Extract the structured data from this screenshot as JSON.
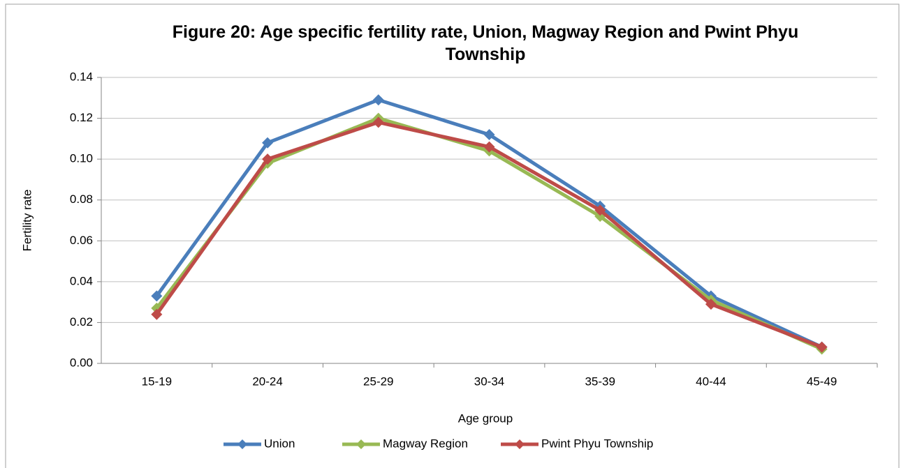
{
  "chart_data": {
    "type": "line",
    "title": "Figure 20: Age specific fertility rate, Union, Magway Region and Pwint Phyu Township",
    "x_label": "Age group",
    "y_label": "Fertility rate",
    "categories": [
      "15-19",
      "20-24",
      "25-29",
      "30-34",
      "35-39",
      "40-44",
      "45-49"
    ],
    "series": [
      {
        "name": "Union",
        "color": "#4a7ebb",
        "values": [
          0.033,
          0.108,
          0.129,
          0.112,
          0.077,
          0.033,
          0.008
        ]
      },
      {
        "name": "Magway Region",
        "color": "#98b954",
        "values": [
          0.027,
          0.098,
          0.12,
          0.104,
          0.072,
          0.031,
          0.007
        ]
      },
      {
        "name": "Pwint Phyu Township",
        "color": "#be4b48",
        "values": [
          0.024,
          0.1,
          0.118,
          0.106,
          0.075,
          0.029,
          0.008
        ]
      }
    ],
    "ylim": [
      0,
      0.14
    ],
    "yticks": [
      {
        "value": 0,
        "label": "0.00"
      },
      {
        "value": 0.02,
        "label": "0.02"
      },
      {
        "value": 0.04,
        "label": "0.04"
      },
      {
        "value": 0.06,
        "label": "0.06"
      },
      {
        "value": 0.08,
        "label": "0.08"
      },
      {
        "value": 0.1,
        "label": "0.10"
      },
      {
        "value": 0.12,
        "label": "0.12"
      },
      {
        "value": 0.14,
        "label": "0.14"
      }
    ],
    "grid": true,
    "legend": "bottom"
  }
}
